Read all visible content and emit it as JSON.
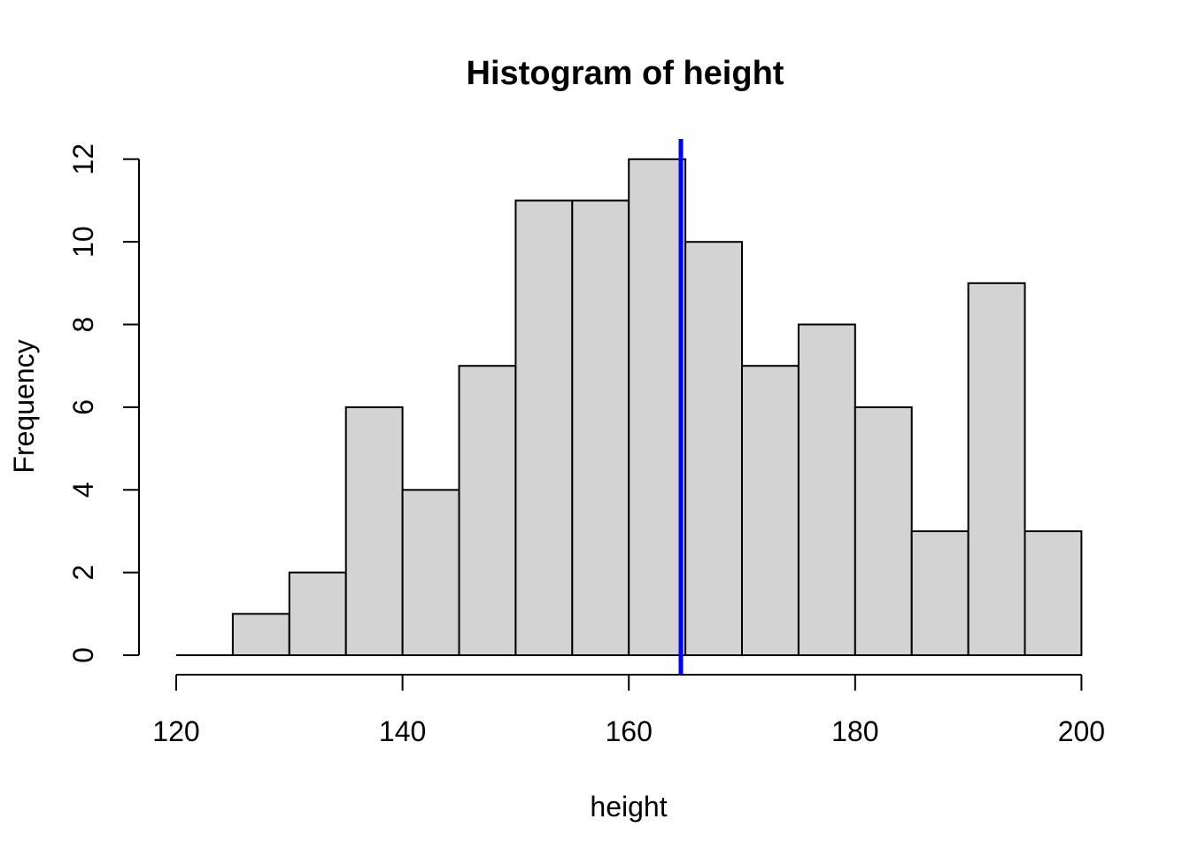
{
  "chart_data": {
    "type": "histogram",
    "title": "Histogram of height",
    "xlabel": "height",
    "ylabel": "Frequency",
    "bin_edges": [
      120,
      125,
      130,
      135,
      140,
      145,
      150,
      155,
      160,
      165,
      170,
      175,
      180,
      185,
      190,
      195,
      200
    ],
    "counts": [
      0,
      1,
      2,
      6,
      4,
      7,
      11,
      11,
      12,
      10,
      7,
      8,
      6,
      3,
      9,
      3
    ],
    "x_ticks": [
      120,
      140,
      160,
      180,
      200
    ],
    "y_ticks": [
      0,
      2,
      4,
      6,
      8,
      10,
      12
    ],
    "xlim": [
      120,
      200
    ],
    "ylim": [
      0,
      12
    ],
    "vline_x": 164.6,
    "grid": false,
    "legend": false,
    "colors": {
      "bar_fill": "#d3d3d3",
      "bar_stroke": "#000000",
      "axis": "#000000",
      "text": "#000000",
      "vline": "#0000ff",
      "background": "#ffffff"
    }
  }
}
